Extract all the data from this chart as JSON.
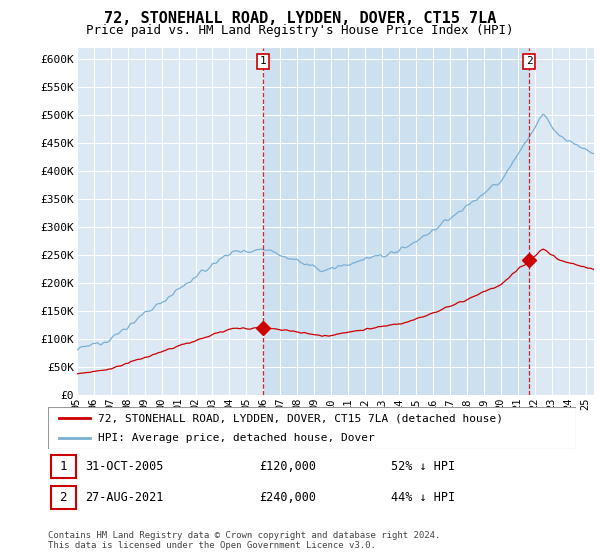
{
  "title": "72, STONEHALL ROAD, LYDDEN, DOVER, CT15 7LA",
  "subtitle": "Price paid vs. HM Land Registry's House Price Index (HPI)",
  "ylabel_ticks": [
    "£0",
    "£50K",
    "£100K",
    "£150K",
    "£200K",
    "£250K",
    "£300K",
    "£350K",
    "£400K",
    "£450K",
    "£500K",
    "£550K",
    "£600K"
  ],
  "ytick_values": [
    0,
    50000,
    100000,
    150000,
    200000,
    250000,
    300000,
    350000,
    400000,
    450000,
    500000,
    550000,
    600000
  ],
  "ylim": [
    0,
    620000
  ],
  "background_color": "#ffffff",
  "plot_background": "#dce9f5",
  "grid_color": "#ffffff",
  "hpi_color": "#7aafd4",
  "price_color": "#cc0000",
  "sale1_date": 2006.0,
  "sale1_price": 120000,
  "sale2_date": 2021.67,
  "sale2_price": 240000,
  "legend_entries": [
    "72, STONEHALL ROAD, LYDDEN, DOVER, CT15 7LA (detached house)",
    "HPI: Average price, detached house, Dover"
  ],
  "copyright": "Contains HM Land Registry data © Crown copyright and database right 2024.\nThis data is licensed under the Open Government Licence v3.0.",
  "xmin": 1995.0,
  "xmax": 2025.5
}
